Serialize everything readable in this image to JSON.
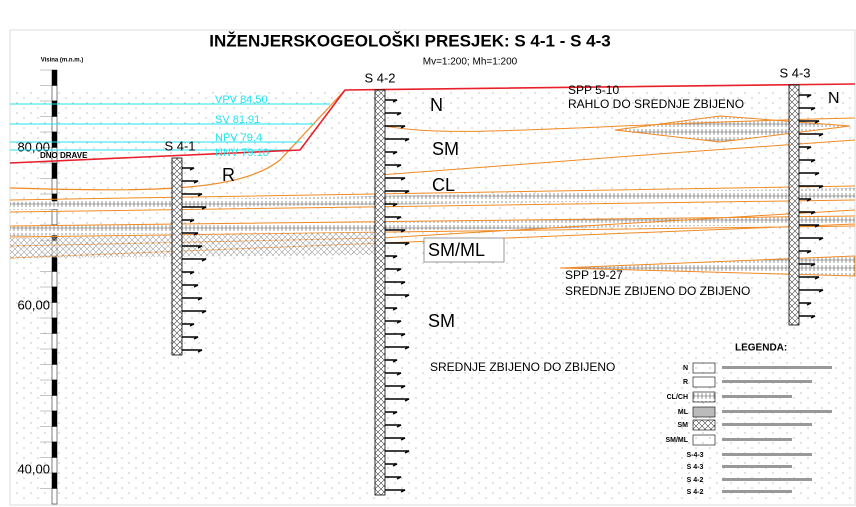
{
  "title": "INŽENJERSKOGEOLOŠKI PRESJEK:  S 4-1 - S 4-3",
  "scale": "Mv=1:200; Mh=1:200",
  "axis": {
    "header": "Visina (m.n.m.)",
    "labels": [
      "80,00",
      "60,00",
      "40,00"
    ]
  },
  "water_levels": [
    "VPV 84.50",
    "SV 81.91",
    "NPV 79.4",
    "NNV 79.10"
  ],
  "river_bed": "DNO DRAVE",
  "boreholes": [
    "S 4-1",
    "S 4-2",
    "S 4-3"
  ],
  "layers": [
    "N",
    "SM",
    "R",
    "CL",
    "SM/ML",
    "SM",
    "N"
  ],
  "notes": [
    "SPP 5-10",
    "RAHLO DO SREDNJE ZBIJENO",
    "SPP  19-27",
    "SREDNJE ZBIJENO DO ZBIJENO",
    "SREDNJE ZBIJENO DO ZBIJENO"
  ],
  "legend": {
    "title": "LEGENDA:",
    "soils": [
      "N",
      "R",
      "CL/CH",
      "ML",
      "SM",
      "SM/ML"
    ],
    "symbols": [
      "S-4-3",
      "S 4-3",
      "S 4-2",
      "S 4-2"
    ]
  }
}
